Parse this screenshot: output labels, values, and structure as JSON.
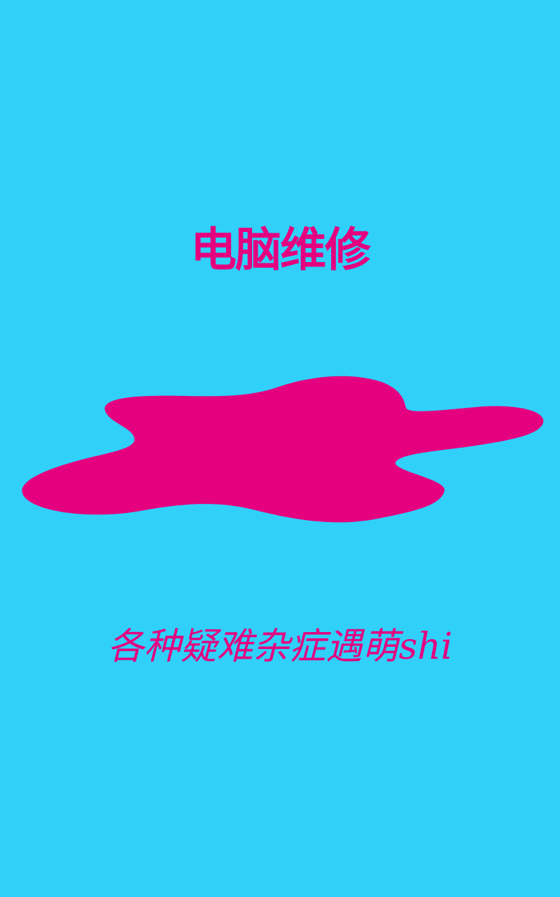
{
  "background_color": "#30d0f8",
  "accent_color": "#e4007f",
  "title": "电脑维修",
  "subtitle": "各种疑难杂症遇萌shi",
  "graphic": "pink-puddle-blob"
}
